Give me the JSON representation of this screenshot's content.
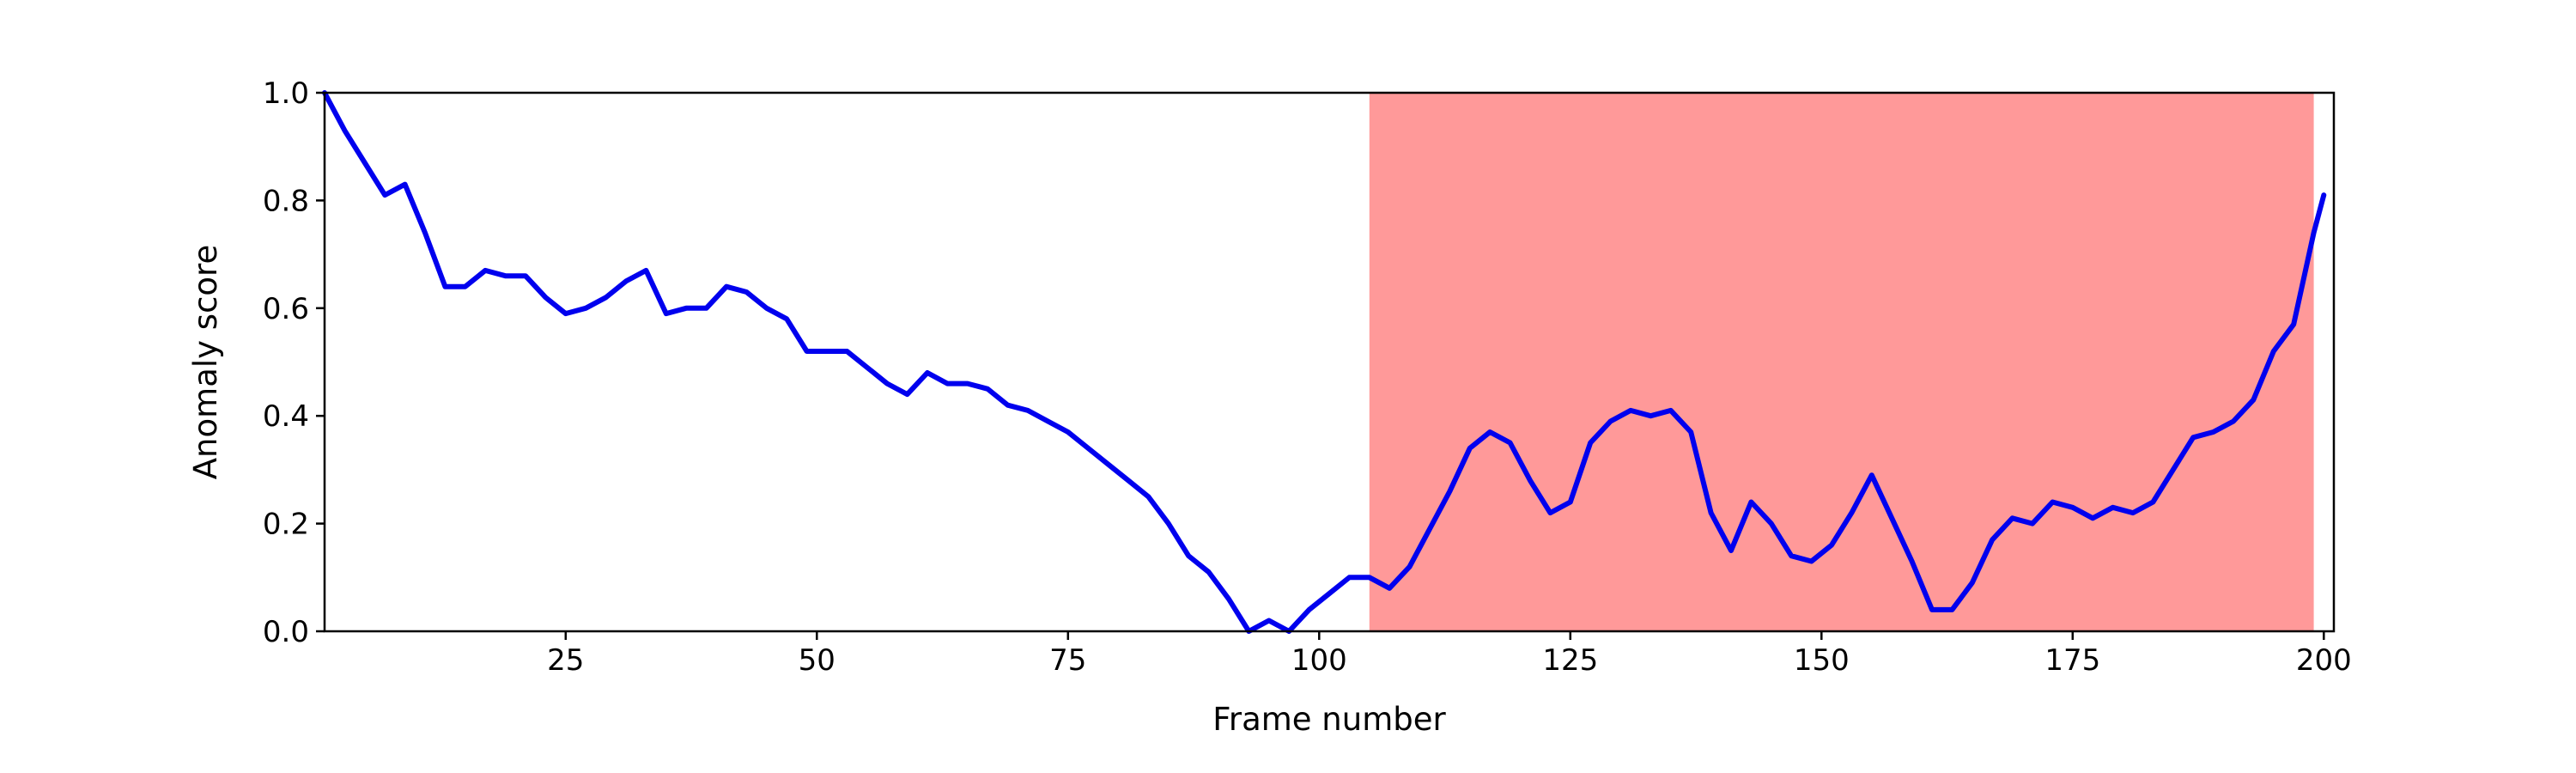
{
  "chart_data": {
    "type": "line",
    "title": "",
    "xlabel": "Frame number",
    "ylabel": "Anomaly score",
    "xlim": [
      1,
      201
    ],
    "ylim": [
      0,
      1
    ],
    "x_ticks": [
      25,
      50,
      75,
      100,
      125,
      150,
      175,
      200
    ],
    "y_ticks": [
      0.0,
      0.2,
      0.4,
      0.6,
      0.8,
      1.0
    ],
    "x_tick_labels": [
      "25",
      "50",
      "75",
      "100",
      "125",
      "150",
      "175",
      "200"
    ],
    "y_tick_labels": [
      "0.0",
      "0.2",
      "0.4",
      "0.6",
      "0.8",
      "1.0"
    ],
    "grid": false,
    "highlight_region": {
      "x_start": 105,
      "x_end": 199,
      "color": "#ff9999"
    },
    "series": [
      {
        "color": "#0000ee",
        "x": [
          1,
          3,
          5,
          7,
          9,
          11,
          13,
          15,
          17,
          19,
          21,
          23,
          25,
          27,
          29,
          31,
          33,
          35,
          37,
          39,
          41,
          43,
          45,
          47,
          49,
          51,
          53,
          55,
          57,
          59,
          61,
          63,
          65,
          67,
          69,
          71,
          73,
          75,
          77,
          79,
          81,
          83,
          85,
          87,
          89,
          91,
          93,
          95,
          97,
          99,
          101,
          103,
          105,
          107,
          109,
          111,
          113,
          115,
          117,
          119,
          121,
          123,
          125,
          127,
          129,
          131,
          133,
          135,
          137,
          139,
          141,
          143,
          145,
          147,
          149,
          151,
          153,
          155,
          157,
          159,
          161,
          163,
          165,
          167,
          169,
          171,
          173,
          175,
          177,
          179,
          181,
          183,
          185,
          187,
          189,
          191,
          193,
          195,
          197,
          199,
          200
        ],
        "y": [
          1.0,
          0.93,
          0.87,
          0.81,
          0.83,
          0.74,
          0.64,
          0.64,
          0.67,
          0.66,
          0.66,
          0.62,
          0.59,
          0.6,
          0.62,
          0.65,
          0.67,
          0.59,
          0.6,
          0.6,
          0.64,
          0.63,
          0.6,
          0.58,
          0.52,
          0.52,
          0.52,
          0.49,
          0.46,
          0.44,
          0.48,
          0.46,
          0.46,
          0.45,
          0.42,
          0.41,
          0.39,
          0.37,
          0.34,
          0.31,
          0.28,
          0.25,
          0.2,
          0.14,
          0.11,
          0.06,
          0.0,
          0.02,
          0.0,
          0.04,
          0.07,
          0.1,
          0.1,
          0.08,
          0.12,
          0.19,
          0.26,
          0.34,
          0.37,
          0.35,
          0.28,
          0.22,
          0.24,
          0.35,
          0.39,
          0.41,
          0.4,
          0.41,
          0.37,
          0.22,
          0.15,
          0.24,
          0.2,
          0.14,
          0.13,
          0.16,
          0.22,
          0.29,
          0.21,
          0.13,
          0.04,
          0.04,
          0.09,
          0.17,
          0.21,
          0.2,
          0.24,
          0.23,
          0.21,
          0.23,
          0.22,
          0.24,
          0.3,
          0.36,
          0.37,
          0.39,
          0.43,
          0.52,
          0.57,
          0.74,
          0.81
        ]
      }
    ]
  }
}
